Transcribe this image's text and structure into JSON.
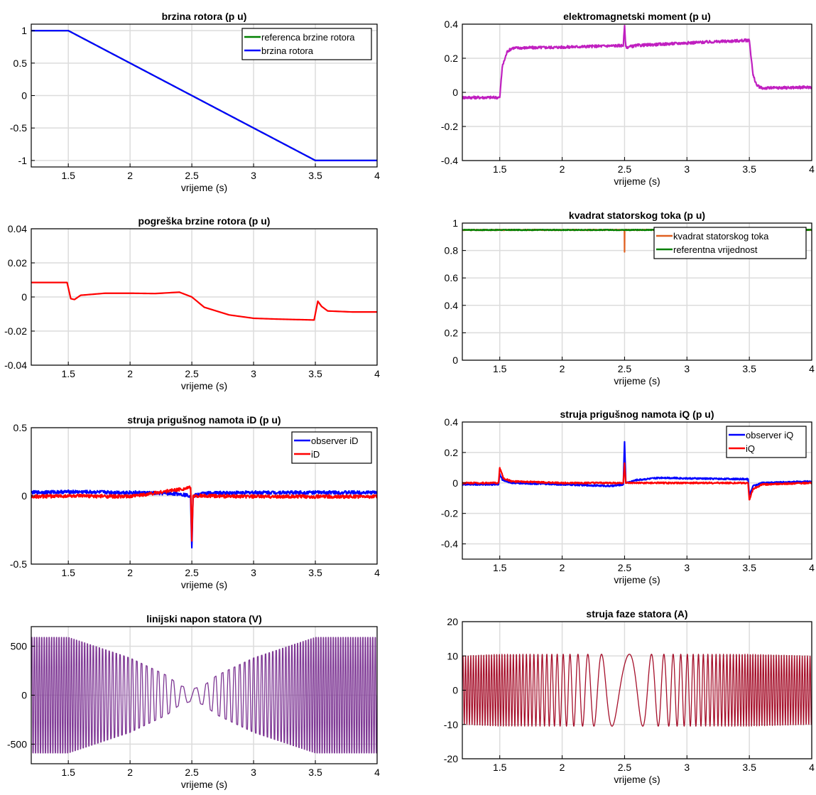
{
  "chart_data": [
    {
      "type": "line",
      "title": "brzina rotora (p u)",
      "xlabel": "vrijeme (s)",
      "ylabel": "",
      "xlim": [
        1.2,
        4
      ],
      "ylim": [
        -1.1,
        1.1
      ],
      "xticks": [
        1.5,
        2,
        2.5,
        3,
        3.5,
        4
      ],
      "yticks": [
        1,
        0.5,
        0,
        -0.5,
        -1
      ],
      "grid": true,
      "legend": "top-right",
      "series": [
        {
          "name": "referenca brzine rotora",
          "color": "#008000",
          "x": [
            1.2,
            1.5,
            3.5,
            4.0
          ],
          "y": [
            1,
            1,
            -1,
            -1
          ]
        },
        {
          "name": "brzina rotora",
          "color": "#0000ff",
          "x": [
            1.2,
            1.5,
            3.5,
            4.0
          ],
          "y": [
            1,
            1,
            -1,
            -1
          ]
        }
      ]
    },
    {
      "type": "line",
      "title": "elektromagnetski moment (p u)",
      "xlabel": "vrijeme (s)",
      "ylabel": "",
      "xlim": [
        1.2,
        4
      ],
      "ylim": [
        -0.4,
        0.4
      ],
      "xticks": [
        1.5,
        2,
        2.5,
        3,
        3.5,
        4
      ],
      "yticks": [
        0.4,
        0.2,
        0,
        -0.2,
        -0.4
      ],
      "grid": true,
      "series": [
        {
          "name": "",
          "color": "#c020c0",
          "x": [
            1.2,
            1.5,
            1.52,
            1.56,
            1.6,
            2.0,
            2.49,
            2.5,
            2.51,
            2.52,
            2.6,
            3.0,
            3.49,
            3.5,
            3.53,
            3.56,
            3.6,
            4.0
          ],
          "y": [
            -0.03,
            -0.03,
            0.15,
            0.24,
            0.26,
            0.265,
            0.275,
            0.39,
            0.27,
            0.265,
            0.275,
            0.29,
            0.305,
            0.305,
            0.1,
            0.04,
            0.025,
            0.03
          ]
        }
      ]
    },
    {
      "type": "line",
      "title": "pogreška brzine rotora (p u)",
      "xlabel": "vrijeme (s)",
      "ylabel": "",
      "xlim": [
        1.2,
        4
      ],
      "ylim": [
        -0.04,
        0.04
      ],
      "xticks": [
        1.5,
        2,
        2.5,
        3,
        3.5,
        4
      ],
      "yticks": [
        0.04,
        0.02,
        0,
        -0.02,
        -0.04
      ],
      "grid": true,
      "series": [
        {
          "name": "",
          "color": "#ff0000",
          "x": [
            1.2,
            1.49,
            1.52,
            1.55,
            1.6,
            1.8,
            2.0,
            2.2,
            2.4,
            2.5,
            2.6,
            2.8,
            3.0,
            3.2,
            3.49,
            3.52,
            3.55,
            3.6,
            3.8,
            4.0
          ],
          "y": [
            0.0085,
            0.0085,
            -0.001,
            -0.0015,
            0.001,
            0.0022,
            0.0022,
            0.002,
            0.0028,
            0.0,
            -0.006,
            -0.0105,
            -0.0125,
            -0.013,
            -0.0135,
            -0.0025,
            -0.0055,
            -0.0082,
            -0.0088,
            -0.0088
          ]
        }
      ]
    },
    {
      "type": "line",
      "title": "kvadrat statorskog toka (p u)",
      "xlabel": "vrijeme (s)",
      "ylabel": "",
      "xlim": [
        1.2,
        4
      ],
      "ylim": [
        0,
        1
      ],
      "xticks": [
        1.5,
        2,
        2.5,
        3,
        3.5,
        4
      ],
      "yticks": [
        1,
        0.8,
        0.6,
        0.4,
        0.2,
        0
      ],
      "grid": true,
      "legend": "top-right",
      "series": [
        {
          "name": "kvadrat statorskog toka",
          "color": "#e06020",
          "x": [
            1.2,
            2.499,
            2.5,
            2.501,
            4.0
          ],
          "y": [
            0.95,
            0.95,
            0.79,
            0.95,
            0.95
          ]
        },
        {
          "name": "referentna vrijednost",
          "color": "#008000",
          "x": [
            1.2,
            4.0
          ],
          "y": [
            0.95,
            0.95
          ]
        }
      ]
    },
    {
      "type": "line",
      "title": "struja prigušnog namota iD (p u)",
      "xlabel": "vrijeme (s)",
      "ylabel": "",
      "xlim": [
        1.2,
        4
      ],
      "ylim": [
        -0.5,
        0.5
      ],
      "xticks": [
        1.5,
        2,
        2.5,
        3,
        3.5,
        4
      ],
      "yticks": [
        0.5,
        0,
        -0.5
      ],
      "grid": true,
      "legend": "top-right",
      "series": [
        {
          "name": "observer iD",
          "color": "#0000ff",
          "x": [
            1.2,
            1.5,
            2.0,
            2.4,
            2.49,
            2.5,
            2.51,
            2.6,
            3.0,
            4.0
          ],
          "y": [
            0.025,
            0.03,
            0.025,
            0.015,
            0.0,
            -0.38,
            0.0,
            0.02,
            0.025,
            0.025
          ]
        },
        {
          "name": "iD",
          "color": "#ff0000",
          "x": [
            1.2,
            1.5,
            2.0,
            2.49,
            2.5,
            2.51,
            2.6,
            3.0,
            4.0
          ],
          "y": [
            -0.005,
            0.0,
            -0.005,
            0.06,
            -0.33,
            0.0,
            0.0,
            -0.005,
            -0.005
          ]
        }
      ]
    },
    {
      "type": "line",
      "title": "struja prigušnog namota iQ (p u)",
      "xlabel": "vrijeme (s)",
      "ylabel": "",
      "xlim": [
        1.2,
        4
      ],
      "ylim": [
        -0.5,
        0.4
      ],
      "xticks": [
        1.5,
        2,
        2.5,
        3,
        3.5,
        4
      ],
      "yticks": [
        0.4,
        0.2,
        0,
        -0.2,
        -0.4
      ],
      "grid": true,
      "legend": "top-right",
      "series": [
        {
          "name": "observer iQ",
          "color": "#0000ff",
          "x": [
            1.2,
            1.49,
            1.5,
            1.52,
            1.6,
            2.0,
            2.4,
            2.49,
            2.5,
            2.51,
            2.6,
            2.8,
            3.0,
            3.49,
            3.5,
            3.53,
            3.6,
            4.0
          ],
          "y": [
            -0.01,
            -0.01,
            0.06,
            0.02,
            0.0,
            -0.01,
            -0.02,
            -0.01,
            0.27,
            0.0,
            0.02,
            0.035,
            0.03,
            0.025,
            -0.08,
            -0.02,
            0.0,
            0.01
          ]
        },
        {
          "name": "iQ",
          "color": "#ff0000",
          "x": [
            1.2,
            1.49,
            1.5,
            1.53,
            1.6,
            2.0,
            2.49,
            2.5,
            2.51,
            2.6,
            3.0,
            3.49,
            3.5,
            3.53,
            3.6,
            4.0
          ],
          "y": [
            0.0,
            0.0,
            0.1,
            0.03,
            0.01,
            0.0,
            0.0,
            0.13,
            0.0,
            0.0,
            0.0,
            0.0,
            -0.11,
            -0.04,
            -0.01,
            0.0
          ]
        }
      ]
    },
    {
      "type": "line",
      "title": "linijski napon statora (V)",
      "xlabel": "vrijeme (s)",
      "ylabel": "",
      "xlim": [
        1.2,
        4
      ],
      "ylim": [
        -700,
        700
      ],
      "xticks": [
        1.5,
        2,
        2.5,
        3,
        3.5,
        4
      ],
      "yticks": [
        500,
        0,
        -500
      ],
      "grid": true,
      "series": [
        {
          "name": "",
          "color": "#7e3794",
          "x": [
            1.2,
            1.5,
            2.0,
            2.3,
            2.4,
            2.5,
            2.6,
            2.7,
            3.0,
            3.5,
            4.0
          ],
          "y": [
            590,
            590,
            380,
            200,
            100,
            60,
            100,
            200,
            380,
            590,
            590
          ]
        }
      ]
    },
    {
      "type": "line",
      "title": "struja faze statora (A)",
      "xlabel": "vrijeme (s)",
      "ylabel": "",
      "xlim": [
        1.2,
        4
      ],
      "ylim": [
        -20,
        20
      ],
      "xticks": [
        1.5,
        2,
        2.5,
        3,
        3.5,
        4
      ],
      "yticks": [
        20,
        10,
        0,
        -10,
        -20
      ],
      "grid": true,
      "series": [
        {
          "name": "",
          "color": "#a50f2a",
          "x": [
            1.2,
            1.5,
            2.0,
            2.5,
            3.0,
            3.5,
            4.0
          ],
          "y": [
            10,
            10.5,
            10.5,
            10.5,
            10.5,
            10.5,
            10
          ]
        }
      ]
    }
  ]
}
